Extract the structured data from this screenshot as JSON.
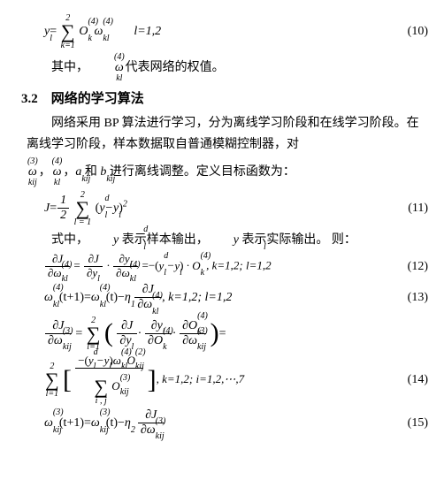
{
  "eq10": {
    "lhs": "y",
    "lhs_sub": "l",
    "sum_top": "2",
    "sum_bot": "k=1",
    "O_base": "O",
    "O_sup": "(4)",
    "O_sub": "k",
    "w_base": "ω",
    "w_sup": "(4)",
    "w_sub": "kl",
    "cond": "l=1,2",
    "num": "(10)"
  },
  "p1": {
    "pre": "其中，",
    "w_sup": "(4)",
    "w_base": "ω",
    "w_sub": "kl",
    "post": "代表网络的权值。"
  },
  "h2": "3.2　网络的学习算法",
  "p2a": "网络采用 BP 算法进行学习，分为离线学习阶段和在线学习阶段。在离线学习阶段，样本数据取自普通模糊控制器，对",
  "p2_syms": {
    "w3_sup": "(3)",
    "w3_base": "ω",
    "w3_sub": "kij",
    "sep": "，",
    "w4_sup": "(4)",
    "w4_base": "ω",
    "w4_sub": "kl",
    "a_base": "a",
    "a_sub": "kij",
    "and": " 和 ",
    "b_base": "b",
    "b_sub": "kij"
  },
  "p2b": " 进行离线调整。定义目标函数为：",
  "eq11": {
    "J": "J",
    "half_num": "1",
    "half_den": "2",
    "sum_top": "2",
    "sum_bot": "l = 1",
    "open": "(",
    "yd_base": "y",
    "yd_sup": "d",
    "yd_sub": "l",
    "minus": "−",
    "y_base": "y",
    "y_sub": "l",
    "close": ")",
    "pow": "2",
    "num": "(11)"
  },
  "p3": {
    "pre": "式中，",
    "yd_base": "y",
    "yd_sup": "d",
    "yd_sub": "l",
    "mid": "表示样本输出，",
    "y_base": "y",
    "y_sub": "l",
    "post": " 表示实际输出。 则：",
    "comma": ","
  },
  "eq12": {
    "dJ": "∂J",
    "dw_base": "∂ω",
    "dw_sup": "(4)",
    "dw_sub": "kl",
    "eq": "=",
    "dJ2": "∂J",
    "dy": "∂y",
    "dy_sub": "l",
    "dot": "·",
    "dyl": "∂y",
    "dyl_sub": "l",
    "eqneg": "=−(",
    "yd_base": "y",
    "yd_sup": "d",
    "yd_sub": "l",
    "y_base": "y",
    "y_sub": "l",
    "O_base": "O",
    "O_sup": "(4)",
    "O_sub": "k",
    "tail": ", k=1,2; l=1,2",
    "num": "(12)"
  },
  "eq13": {
    "w_base": "ω",
    "w_sup": "(4)",
    "w_sub": "kl",
    "t1": "(t+1)=",
    "t0": "(t)−",
    "eta": "η",
    "eta_sub": "1",
    "dJ": "∂J",
    "dw_base": "∂ω",
    "dw_sup": "(4)",
    "dw_sub": "kl",
    "tail": ", k=1,2; l=1,2",
    "num": "(13)"
  },
  "eq14": {
    "dJ": "∂J",
    "dw3_base": "∂ω",
    "dw3_sup": "(3)",
    "dw3_sub": "kij",
    "sum_top": "2",
    "sum_bot": "l=1",
    "dyl": "∂y",
    "dyl_sub": "l",
    "dO4_base": "∂O",
    "dO4_sup": "(4)",
    "dO4_sub": "k",
    "dO3_base": "∂O",
    "dO3_sup": "(3)",
    "dO3_sub": "kij",
    "line2_num_open": "−(",
    "yd_base": "y",
    "yd_sup": "d",
    "yd_sub": "l",
    "y_base": "y",
    "y_sub": "l",
    "w4_base": "ω",
    "w4_sup": "(4)",
    "w4_sub": "kl",
    "O2_base": "O",
    "O2_sup": "(2)",
    "O2_sub": "kij",
    "den_sum_bot": "i , j",
    "O3_base": "O",
    "O3_sup": "(3)",
    "O3_sub": "kij",
    "tail": ", k=1,2; i=1,2,⋯,7",
    "num": "(14)"
  },
  "eq15": {
    "w3_base": "ω",
    "w3_sup": "(3)",
    "w3_sub": "kij",
    "t1": "(t+1)=",
    "t0": "(t)−",
    "eta": "η",
    "eta_sub": "2",
    "dJ": "∂J",
    "dw3_base": "∂ω",
    "dw3_sup": "(3)",
    "dw3_sub": "kij",
    "num": "(15)"
  }
}
